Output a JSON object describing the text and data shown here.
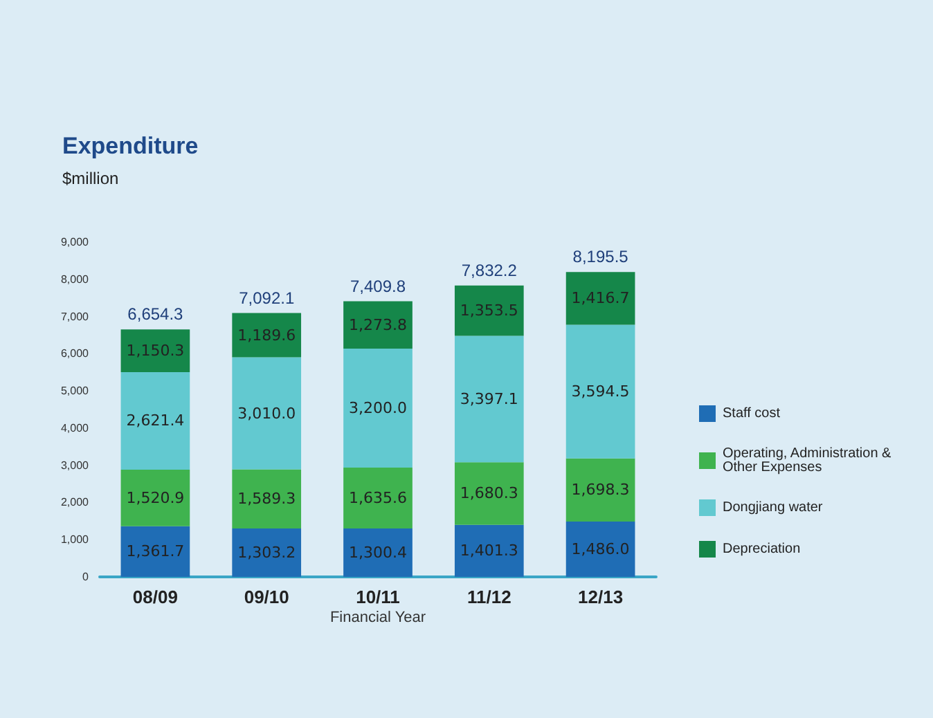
{
  "chart_data": {
    "type": "bar",
    "title": "Expenditure",
    "subtitle": "$million",
    "xlabel": "Financial Year",
    "categories": [
      "08/09",
      "09/10",
      "10/11",
      "11/12",
      "12/13"
    ],
    "stacked": true,
    "series": [
      {
        "name": "Staff cost",
        "color": "#1f6db5",
        "values": [
          1361.7,
          1303.2,
          1300.4,
          1401.3,
          1486.0
        ],
        "value_labels": [
          "1,361.7",
          "1,303.2",
          "1,300.4",
          "1,401.3",
          "1,486.0"
        ]
      },
      {
        "name": "Operating, Administration & Other Expenses",
        "color": "#3fb34f",
        "values": [
          1520.9,
          1589.3,
          1635.6,
          1680.3,
          1698.3
        ],
        "value_labels": [
          "1,520.9",
          "1,589.3",
          "1,635.6",
          "1,680.3",
          "1,698.3"
        ]
      },
      {
        "name": "Dongjiang water",
        "color": "#62c9d0",
        "values": [
          2621.4,
          3010.0,
          3200.0,
          3397.1,
          3594.5
        ],
        "value_labels": [
          "2,621.4",
          "3,010.0",
          "3,200.0",
          "3,397.1",
          "3,594.5"
        ]
      },
      {
        "name": "Depreciation",
        "color": "#15874a",
        "values": [
          1150.3,
          1189.6,
          1273.8,
          1353.5,
          1416.7
        ],
        "value_labels": [
          "1,150.3",
          "1,189.6",
          "1,273.8",
          "1,353.5",
          "1,416.7"
        ]
      }
    ],
    "totals": [
      "6,654.3",
      "7,092.1",
      "7,409.8",
      "7,832.2",
      "8,195.5"
    ],
    "ylim": [
      0,
      9000
    ],
    "yticks": [
      {
        "value": 0,
        "label": "0"
      },
      {
        "value": 1000,
        "label": "1,000"
      },
      {
        "value": 2000,
        "label": "2,000"
      },
      {
        "value": 3000,
        "label": "3,000"
      },
      {
        "value": 4000,
        "label": "4,000"
      },
      {
        "value": 5000,
        "label": "5,000"
      },
      {
        "value": 6000,
        "label": "6,000"
      },
      {
        "value": 7000,
        "label": "7,000"
      },
      {
        "value": 8000,
        "label": "8,000"
      },
      {
        "value": 9000,
        "label": "9,000"
      }
    ],
    "grid": false,
    "legend": "right"
  }
}
